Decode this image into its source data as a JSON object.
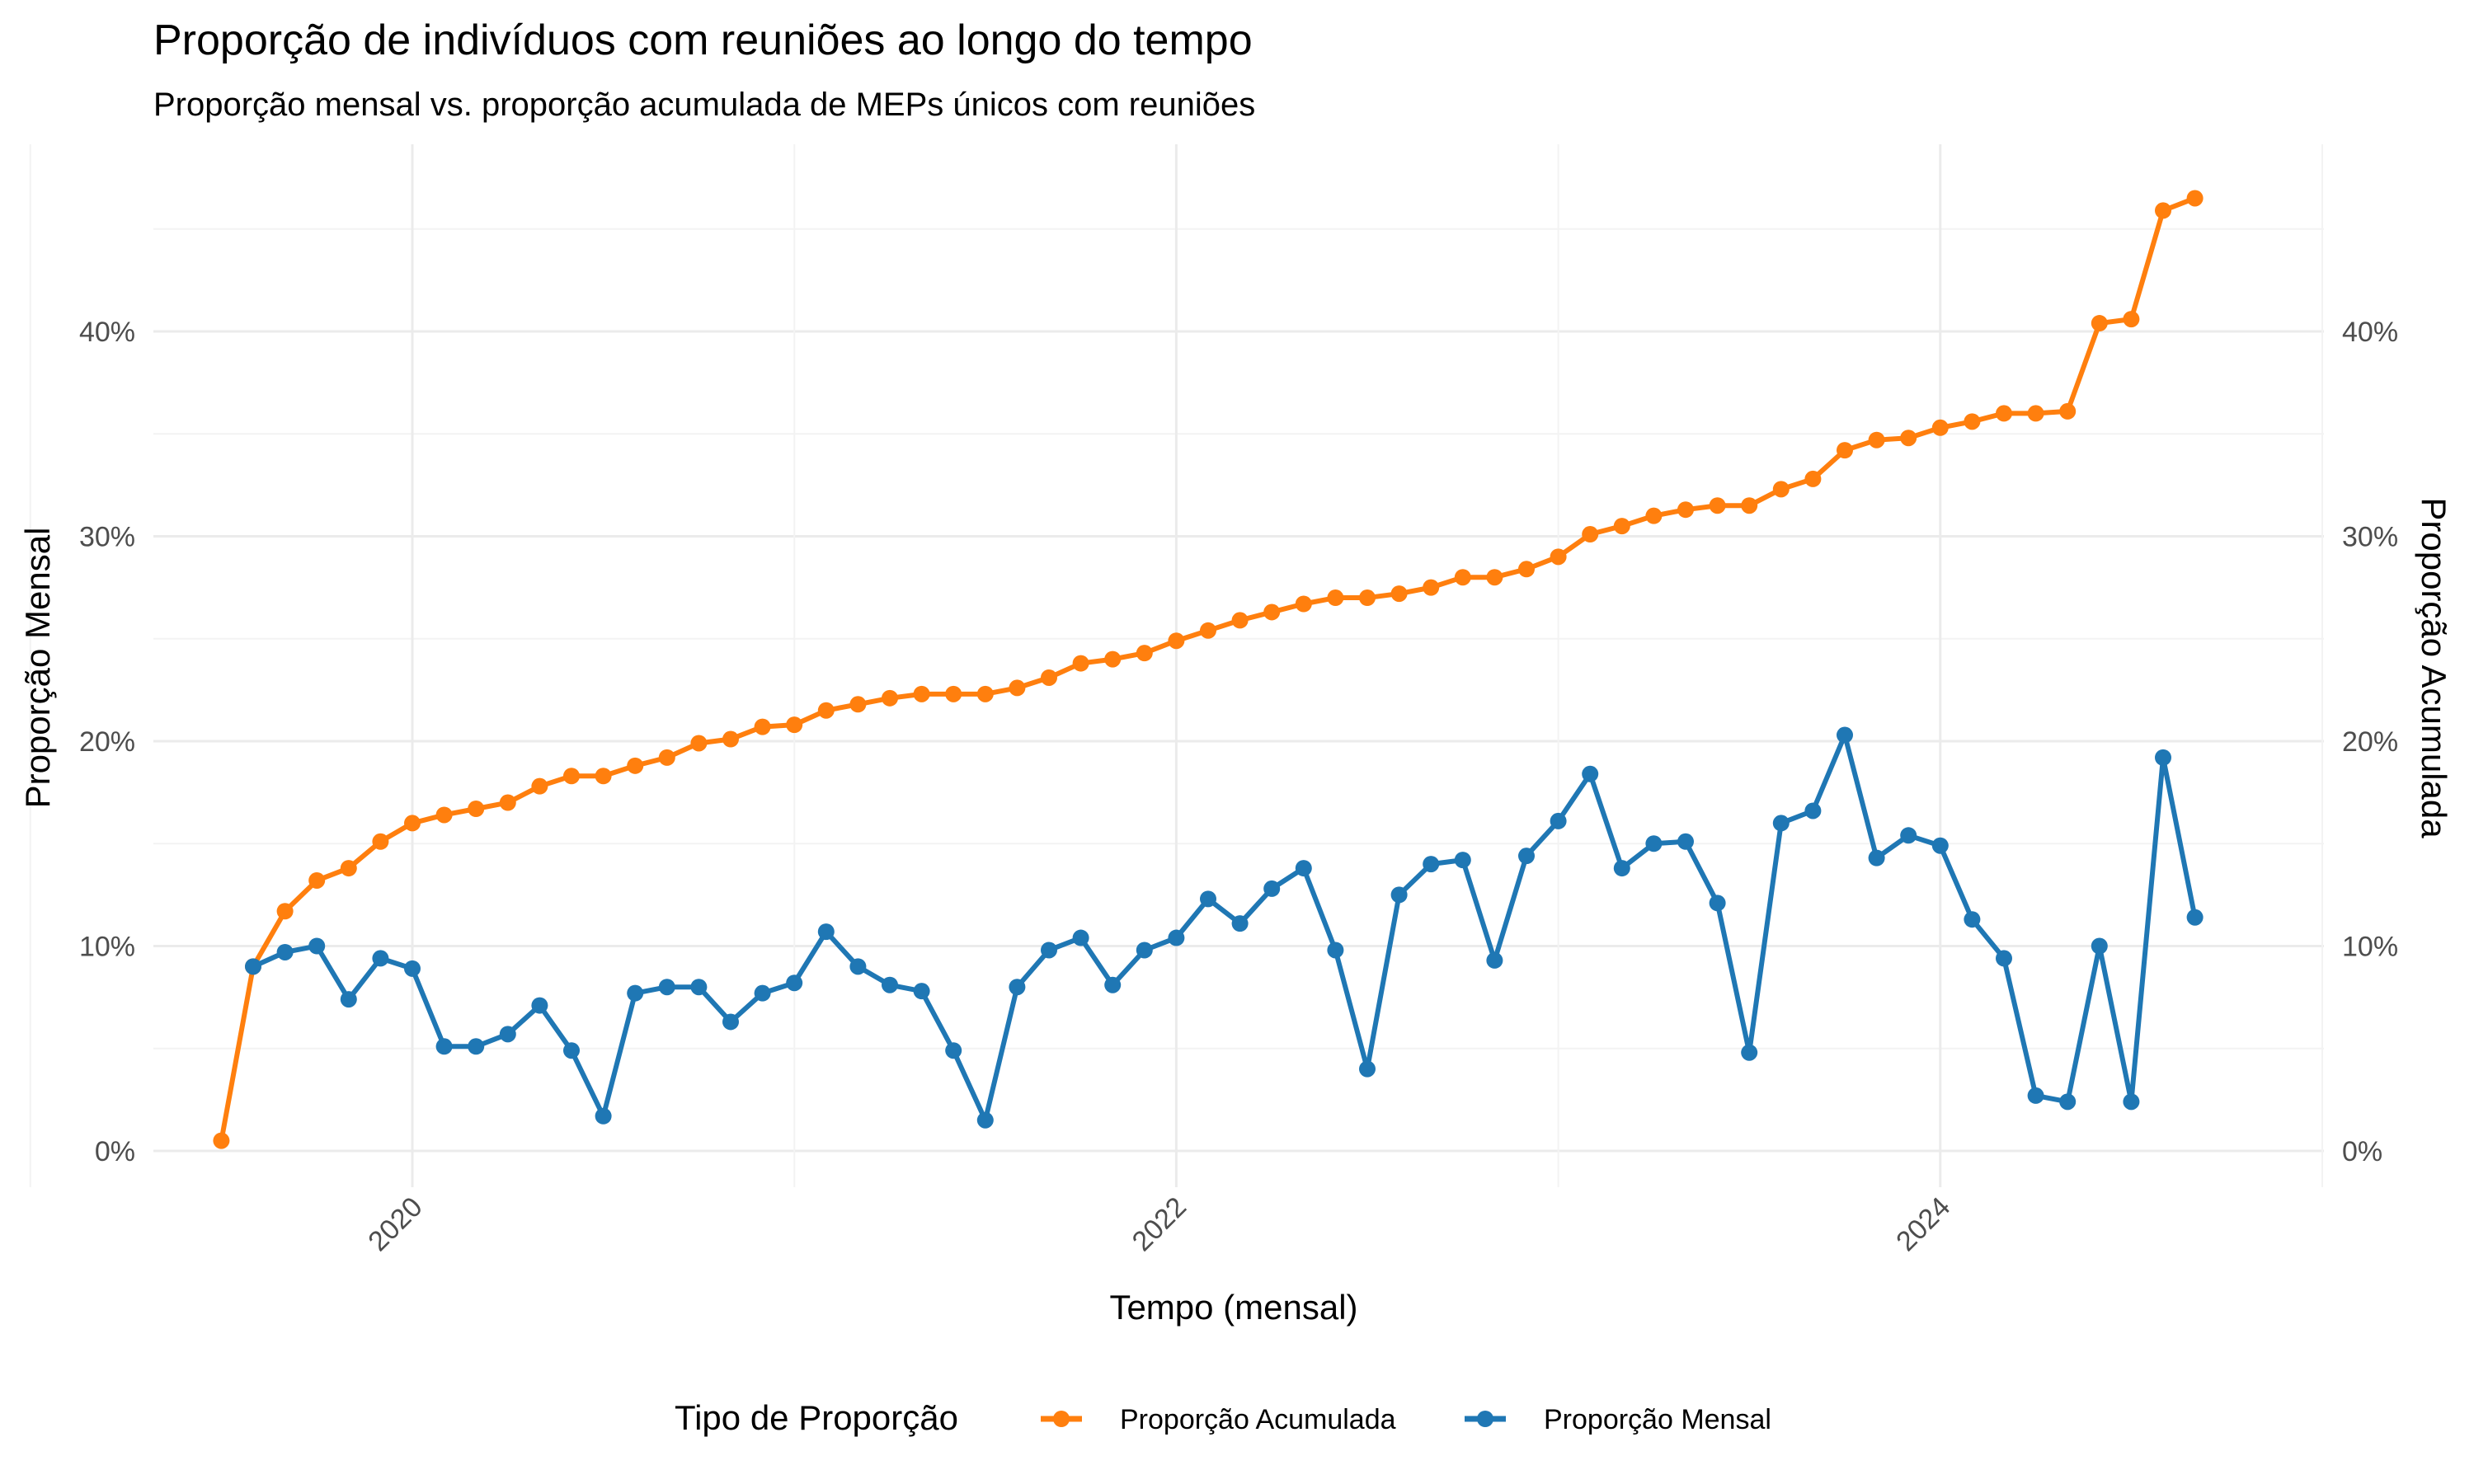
{
  "chart_data": {
    "type": "line",
    "title": "Proporção de indivíduos com reuniões ao longo do tempo",
    "subtitle": "Proporção mensal vs. proporção acumulada de MEPs únicos com reuniões",
    "xlabel": "Tempo (mensal)",
    "ylabel": "Proporção Mensal",
    "y2label": "Proporção Acumulada",
    "x_ticks": [
      "2020",
      "2022",
      "2024"
    ],
    "y_ticks": [
      "0%",
      "10%",
      "20%",
      "30%",
      "40%"
    ],
    "y2_ticks": [
      "0%",
      "10%",
      "20%",
      "30%",
      "40%"
    ],
    "ylim": [
      0,
      0.47
    ],
    "grid": true,
    "legend": {
      "title": "Tipo de Proporção",
      "position": "bottom"
    },
    "x_start": "2019-07",
    "series": [
      {
        "name": "Proporção Acumulada",
        "color": "#ff7f0e",
        "start": "2019-07",
        "values": [
          0.005,
          0.09,
          0.117,
          0.132,
          0.138,
          0.151,
          0.16,
          0.164,
          0.167,
          0.17,
          0.178,
          0.183,
          0.183,
          0.188,
          0.192,
          0.199,
          0.201,
          0.207,
          0.208,
          0.215,
          0.218,
          0.221,
          0.223,
          0.223,
          0.223,
          0.226,
          0.231,
          0.238,
          0.24,
          0.243,
          0.249,
          0.254,
          0.259,
          0.263,
          0.267,
          0.27,
          0.27,
          0.272,
          0.275,
          0.28,
          0.28,
          0.284,
          0.29,
          0.301,
          0.305,
          0.31,
          0.313,
          0.315,
          0.315,
          0.323,
          0.328,
          0.342,
          0.347,
          0.348,
          0.353,
          0.356,
          0.36,
          0.36,
          0.361,
          0.404,
          0.406,
          0.459,
          0.465
        ]
      },
      {
        "name": "Proporção Mensal",
        "color": "#1f77b4",
        "start": "2019-08",
        "values": [
          0.09,
          0.097,
          0.1,
          0.074,
          0.094,
          0.089,
          0.051,
          0.051,
          0.057,
          0.071,
          0.049,
          0.017,
          0.077,
          0.08,
          0.08,
          0.063,
          0.077,
          0.082,
          0.107,
          0.09,
          0.081,
          0.078,
          0.049,
          0.015,
          0.08,
          0.098,
          0.104,
          0.081,
          0.098,
          0.104,
          0.123,
          0.111,
          0.128,
          0.138,
          0.098,
          0.04,
          0.125,
          0.14,
          0.142,
          0.093,
          0.144,
          0.161,
          0.184,
          0.138,
          0.15,
          0.151,
          0.121,
          0.048,
          0.16,
          0.166,
          0.203,
          0.143,
          0.154,
          0.149,
          0.113,
          0.094,
          0.027,
          0.024,
          0.1,
          0.024,
          0.192,
          0.114
        ]
      }
    ]
  }
}
